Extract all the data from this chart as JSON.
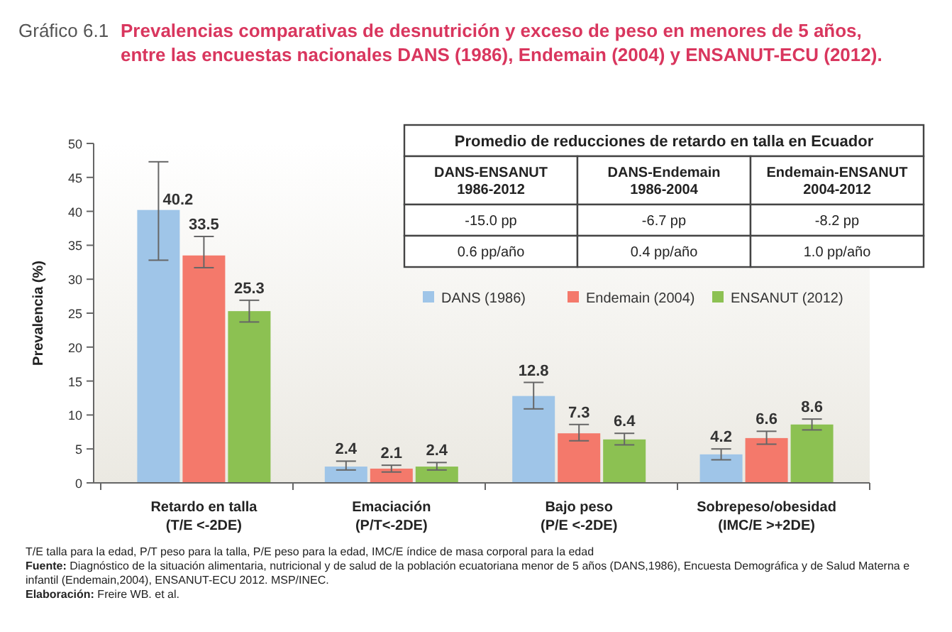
{
  "chart_data": {
    "type": "bar",
    "title": "Gráfico 6.1",
    "subtitle": "Prevalencias comparativas de desnutrición y exceso de peso en menores de 5 años, entre las encuestas nacionales DANS (1986), Endemain (2004) y ENSANUT-ECU (2012).",
    "ylabel": "Prevalencia (%)",
    "categories": [
      "Retardo en talla\n(T/E <-2DE)",
      "Emaciación\n(P/T<-2DE)",
      "Bajo peso\n(P/E <-2DE)",
      "Sobrepeso/obesidad\n(IMC/E >+2DE)"
    ],
    "series": [
      {
        "name": "DANS (1986)",
        "color": "#9fc5e8",
        "values": [
          40.2,
          2.4,
          12.8,
          4.2
        ],
        "errors": [
          [
            32.8,
            47.3
          ],
          [
            1.9,
            3.2
          ],
          [
            10.9,
            14.8
          ],
          [
            3.4,
            5.0
          ]
        ]
      },
      {
        "name": "Endemain (2004)",
        "color": "#f4796b",
        "values": [
          33.5,
          2.1,
          7.3,
          6.6
        ],
        "errors": [
          [
            31.7,
            36.3
          ],
          [
            1.6,
            2.6
          ],
          [
            6.2,
            8.6
          ],
          [
            5.7,
            7.6
          ]
        ]
      },
      {
        "name": "ENSANUT (2012)",
        "color": "#8cc152",
        "values": [
          25.3,
          2.4,
          6.4,
          8.6
        ],
        "errors": [
          [
            23.7,
            26.9
          ],
          [
            1.9,
            3.0
          ],
          [
            5.6,
            7.3
          ],
          [
            7.8,
            9.4
          ]
        ]
      }
    ],
    "ylim": [
      0,
      50
    ],
    "yticks": [
      0,
      5,
      10,
      15,
      20,
      25,
      30,
      35,
      40,
      45,
      50
    ],
    "data_labels": true,
    "legend": "top right",
    "annotations": [
      "Promedio de reducciones de retardo en talla en Ecuador",
      "DANS-ENSANUT\n1986-2012",
      "DANS-Endemain\n1986-2004",
      "Endemain-ENSANUT\n2004-2012",
      "-15.0 pp",
      "-6.7 pp",
      "-8.2 pp",
      "0.6 pp/año",
      "0.4 pp/año",
      "1.0 pp/año",
      "T/E talla para la edad, P/T peso para la talla, P/E peso para la edad, IMC/E índice de masa corporal para la edad",
      "Fuente: Diagnóstico de la situación alimentaria, nutricional y de salud de la población ecuatoriana menor de 5 años (DANS,1986), Encuesta Demográfica y de Salud Materna e\ninfantil (Endemain,2004), ENSANUT-ECU 2012. MSP/INEC.",
      "Elaboración: Freire WB. et al."
    ]
  }
}
